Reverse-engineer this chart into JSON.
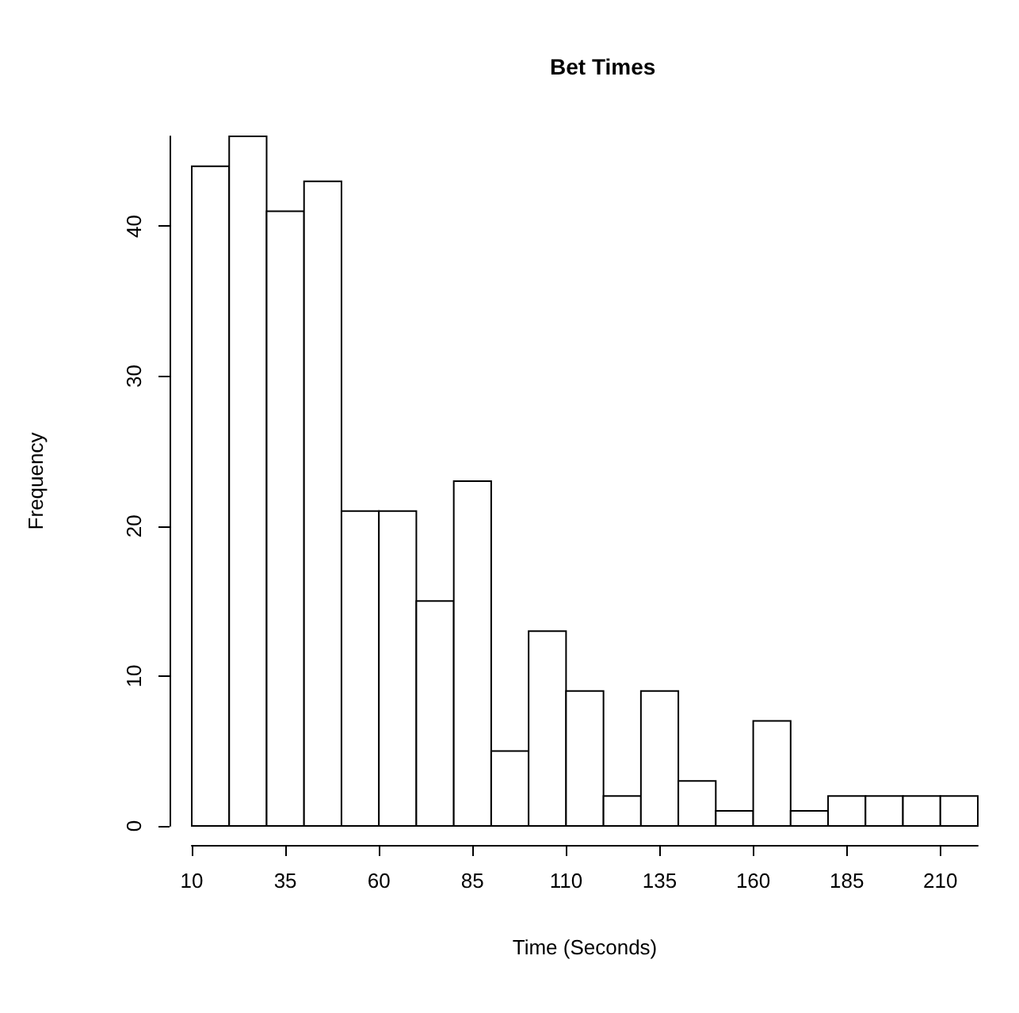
{
  "chart_data": {
    "type": "histogram",
    "title": "Bet Times",
    "xlabel": "Time (Seconds)",
    "ylabel": "Frequency",
    "bins": [
      10,
      20,
      30,
      40,
      50,
      60,
      70,
      80,
      90,
      100,
      110,
      120,
      130,
      140,
      150,
      160,
      170,
      180,
      190,
      200,
      210,
      220
    ],
    "values": [
      44,
      46,
      41,
      43,
      21,
      21,
      15,
      23,
      5,
      13,
      9,
      2,
      9,
      3,
      1,
      7,
      1,
      2,
      2,
      2,
      2
    ],
    "color": "#ffffff",
    "xlim": [
      10,
      220
    ],
    "xticks": [
      10,
      35,
      60,
      85,
      110,
      135,
      160,
      185,
      210
    ],
    "ylim": [
      0,
      46
    ],
    "yticks": [
      0,
      10,
      20,
      30,
      40
    ],
    "grid": false
  }
}
